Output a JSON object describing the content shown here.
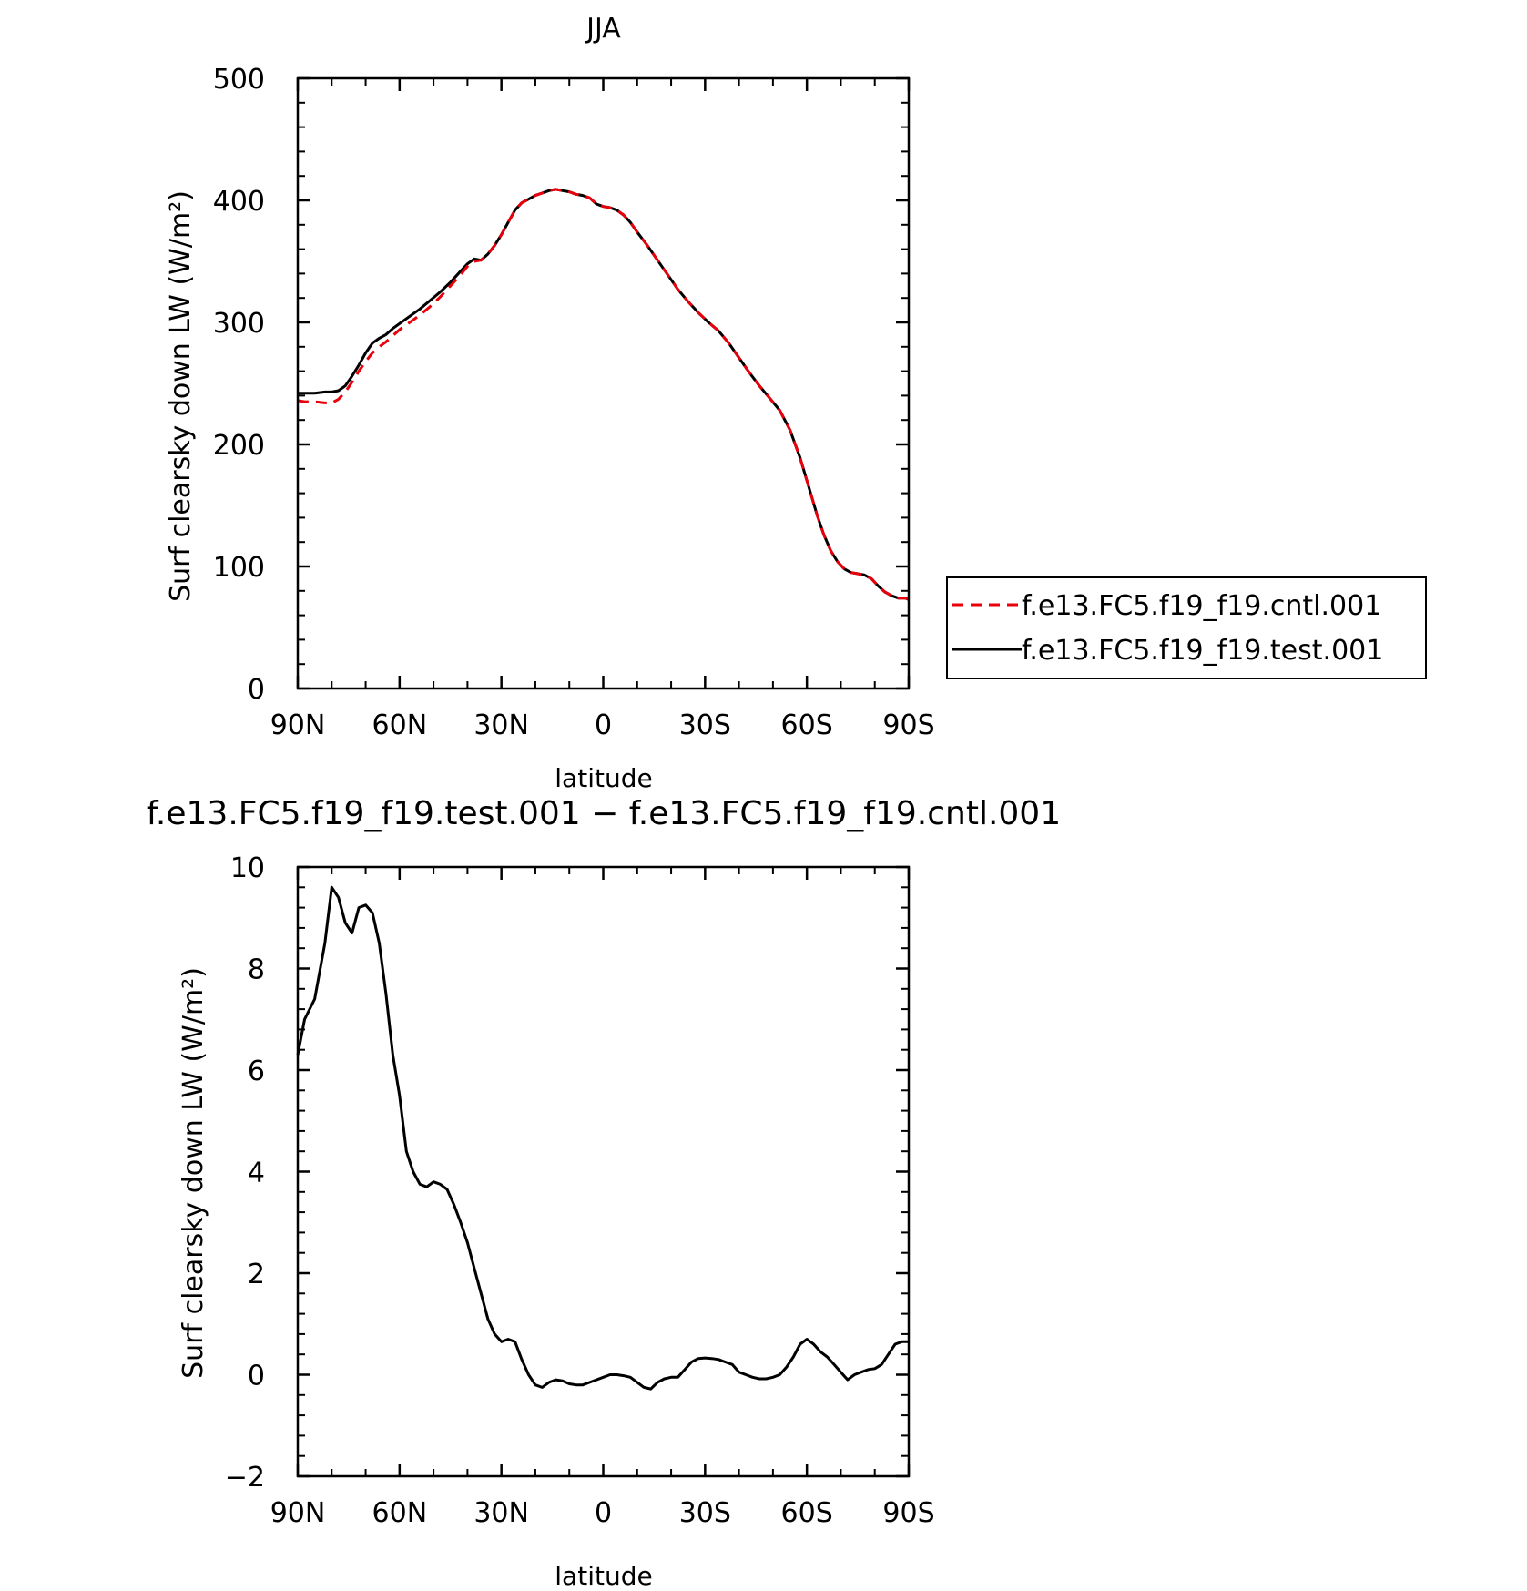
{
  "chart_data": [
    {
      "type": "line",
      "title": "JJA",
      "xlabel": "latitude",
      "ylabel": "Surf clearsky down LW (W/m²)",
      "ylim": [
        0,
        500
      ],
      "yticks": [
        0,
        100,
        200,
        300,
        400,
        500
      ],
      "xlim": [
        90,
        -90
      ],
      "xticks": [
        90,
        60,
        30,
        0,
        -30,
        -60,
        -90
      ],
      "xtick_labels": [
        "90N",
        "60N",
        "30N",
        "0",
        "30S",
        "60S",
        "90S"
      ],
      "legend_position": "right",
      "grid": false,
      "x": [
        90,
        88,
        85,
        82,
        80,
        78,
        76,
        74,
        72,
        70,
        68,
        66,
        64,
        62,
        60,
        57,
        54,
        51,
        48,
        45,
        42,
        40,
        38,
        36,
        34,
        32,
        30,
        28,
        26,
        24,
        22,
        20,
        18,
        16,
        14,
        12,
        10,
        8,
        6,
        4,
        2,
        0,
        -2,
        -4,
        -6,
        -8,
        -10,
        -13,
        -16,
        -19,
        -22,
        -25,
        -28,
        -31,
        -34,
        -37,
        -40,
        -43,
        -46,
        -49,
        -52,
        -55,
        -58,
        -61,
        -63,
        -65,
        -67,
        -69,
        -71,
        -73,
        -75,
        -77,
        -79,
        -81,
        -83,
        -85,
        -87,
        -89,
        -90
      ],
      "series": [
        {
          "name": "f.e13.FC5.f19_f19.cntl.001",
          "color": "#e8000b",
          "dash": "dashed",
          "values": [
            236,
            235,
            235,
            234,
            234,
            237,
            243,
            251,
            260,
            268,
            275,
            280,
            284,
            289,
            294,
            300,
            306,
            313,
            321,
            330,
            339,
            346,
            350,
            351,
            356,
            363,
            372,
            382,
            392,
            398,
            401,
            404,
            406,
            408,
            409,
            408,
            407,
            405,
            404,
            402,
            397,
            395,
            394,
            392,
            388,
            382,
            374,
            363,
            351,
            339,
            327,
            317,
            308,
            300,
            293,
            283,
            271,
            259,
            248,
            238,
            228,
            212,
            189,
            161,
            142,
            126,
            113,
            104,
            98,
            95,
            94,
            93,
            90,
            84,
            79,
            76,
            74,
            74,
            73
          ]
        },
        {
          "name": "f.e13.FC5.f19_f19.test.001",
          "color": "#000000",
          "dash": "solid",
          "values": [
            242,
            242,
            242,
            243,
            243,
            244,
            248,
            256,
            265,
            275,
            283,
            287,
            290,
            295,
            299,
            305,
            311,
            318,
            325,
            333,
            342,
            348,
            352,
            351,
            356,
            363,
            372,
            382,
            392,
            398,
            401,
            404,
            406,
            408,
            409,
            408,
            407,
            405,
            404,
            402,
            397,
            395,
            394,
            392,
            388,
            382,
            374,
            363,
            351,
            339,
            327,
            317,
            308,
            300,
            293,
            283,
            271,
            259,
            248,
            238,
            228,
            212,
            189,
            161,
            142,
            126,
            113,
            104,
            98,
            95,
            94,
            93,
            90,
            84,
            79,
            76,
            74,
            74,
            73
          ]
        }
      ]
    },
    {
      "type": "line",
      "title": "f.e13.FC5.f19_f19.test.001 − f.e13.FC5.f19_f19.cntl.001",
      "xlabel": "latitude",
      "ylabel": "Surf clearsky down LW (W/m²)",
      "ylim": [
        -2,
        10
      ],
      "yticks": [
        -2,
        0,
        2,
        4,
        6,
        8,
        10
      ],
      "xlim": [
        90,
        -90
      ],
      "xticks": [
        90,
        60,
        30,
        0,
        -30,
        -60,
        -90
      ],
      "xtick_labels": [
        "90N",
        "60N",
        "30N",
        "0",
        "30S",
        "60S",
        "90S"
      ],
      "grid": false,
      "x": [
        90,
        88,
        85,
        82,
        80,
        78,
        76,
        74,
        72,
        70,
        68,
        66,
        64,
        62,
        60,
        58,
        56,
        54,
        52,
        50,
        48,
        46,
        44,
        42,
        40,
        38,
        36,
        34,
        32,
        30,
        28,
        26,
        24,
        22,
        20,
        18,
        16,
        14,
        12,
        10,
        8,
        6,
        4,
        2,
        0,
        -2,
        -4,
        -6,
        -8,
        -10,
        -12,
        -14,
        -16,
        -18,
        -20,
        -22,
        -24,
        -26,
        -28,
        -30,
        -32,
        -34,
        -36,
        -38,
        -40,
        -42,
        -44,
        -46,
        -48,
        -50,
        -52,
        -54,
        -56,
        -58,
        -60,
        -62,
        -64,
        -66,
        -68,
        -70,
        -72,
        -74,
        -76,
        -78,
        -80,
        -82,
        -84,
        -86,
        -88,
        -90
      ],
      "series": [
        {
          "name": "",
          "color": "#000000",
          "dash": "solid",
          "values": [
            6.3,
            7.0,
            7.4,
            8.5,
            9.6,
            9.4,
            8.9,
            8.7,
            9.2,
            9.25,
            9.1,
            8.5,
            7.5,
            6.3,
            5.5,
            4.4,
            4.0,
            3.75,
            3.7,
            3.8,
            3.75,
            3.65,
            3.35,
            3.0,
            2.6,
            2.1,
            1.6,
            1.1,
            0.8,
            0.65,
            0.7,
            0.65,
            0.3,
            0.0,
            -0.2,
            -0.25,
            -0.15,
            -0.1,
            -0.12,
            -0.18,
            -0.2,
            -0.2,
            -0.15,
            -0.1,
            -0.05,
            0.0,
            0.0,
            -0.02,
            -0.05,
            -0.15,
            -0.25,
            -0.28,
            -0.15,
            -0.08,
            -0.05,
            -0.05,
            0.1,
            0.25,
            0.32,
            0.33,
            0.32,
            0.3,
            0.25,
            0.2,
            0.05,
            0.0,
            -0.05,
            -0.08,
            -0.08,
            -0.05,
            0.0,
            0.15,
            0.35,
            0.6,
            0.7,
            0.6,
            0.45,
            0.35,
            0.2,
            0.05,
            -0.1,
            0.0,
            0.05,
            0.1,
            0.12,
            0.2,
            0.4,
            0.6,
            0.65,
            0.65
          ]
        }
      ]
    }
  ]
}
